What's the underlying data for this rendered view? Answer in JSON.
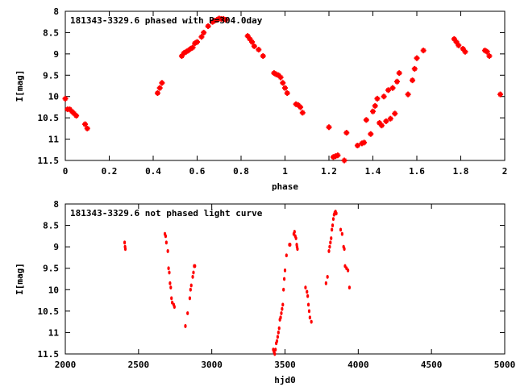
{
  "chart_data": [
    {
      "type": "scatter",
      "title": "181343-3329.6 phased with P=304.0day",
      "xlabel": "phase",
      "ylabel": "I[mag]",
      "xlim": [
        0,
        2
      ],
      "ylim": [
        11.5,
        8
      ],
      "y_reversed": true,
      "xticks": [
        "0",
        "0.2",
        "0.4",
        "0.6",
        "0.8",
        "1",
        "1.2",
        "1.4",
        "1.6",
        "1.8",
        "2"
      ],
      "xtick_values": [
        0,
        0.2,
        0.4,
        0.6,
        0.8,
        1,
        1.2,
        1.4,
        1.6,
        1.8,
        2
      ],
      "yticks": [
        "8",
        "8.5",
        "9",
        "9.5",
        "10",
        "10.5",
        "11",
        "11.5"
      ],
      "ytick_values": [
        8,
        8.5,
        9,
        9.5,
        10,
        10.5,
        11,
        11.5
      ],
      "marker_color": "#ff0000",
      "x": [
        0.0,
        0.01,
        0.02,
        0.03,
        0.04,
        0.05,
        0.09,
        0.1,
        0.42,
        0.43,
        0.44,
        0.53,
        0.54,
        0.55,
        0.56,
        0.57,
        0.58,
        0.59,
        0.6,
        0.62,
        0.63,
        0.65,
        0.67,
        0.68,
        0.69,
        0.7,
        0.71,
        0.72,
        0.73,
        0.83,
        0.84,
        0.85,
        0.86,
        0.88,
        0.9,
        0.95,
        0.96,
        0.97,
        0.98,
        0.99,
        1.0,
        1.01,
        1.05,
        1.06,
        1.07,
        1.08,
        1.2,
        1.22,
        1.23,
        1.24,
        1.27,
        1.28,
        1.33,
        1.35,
        1.36,
        1.37,
        1.39,
        1.4,
        1.41,
        1.42,
        1.43,
        1.44,
        1.45,
        1.46,
        1.47,
        1.48,
        1.49,
        1.5,
        1.51,
        1.52,
        1.56,
        1.58,
        1.59,
        1.6,
        1.63,
        1.77,
        1.78,
        1.79,
        1.81,
        1.82,
        1.91,
        1.92,
        1.93,
        1.98
      ],
      "y": [
        10.05,
        10.3,
        10.3,
        10.35,
        10.4,
        10.45,
        10.65,
        10.75,
        9.92,
        9.8,
        9.68,
        9.05,
        8.98,
        8.95,
        8.92,
        8.88,
        8.85,
        8.75,
        8.72,
        8.6,
        8.5,
        8.35,
        8.25,
        8.22,
        8.2,
        8.17,
        8.18,
        8.18,
        8.2,
        8.58,
        8.65,
        8.72,
        8.82,
        8.9,
        9.05,
        9.45,
        9.48,
        9.5,
        9.55,
        9.68,
        9.8,
        9.92,
        10.18,
        10.2,
        10.25,
        10.38,
        10.72,
        11.42,
        11.4,
        11.38,
        11.5,
        10.85,
        11.15,
        11.1,
        11.08,
        10.55,
        10.88,
        10.35,
        10.22,
        10.05,
        10.62,
        10.68,
        10.0,
        10.58,
        9.85,
        10.52,
        9.8,
        10.4,
        9.65,
        9.45,
        9.95,
        9.62,
        9.35,
        9.1,
        8.92,
        8.65,
        8.72,
        8.8,
        8.88,
        8.95,
        8.92,
        8.95,
        9.05,
        9.95
      ]
    },
    {
      "type": "scatter",
      "title": "181343-3329.6 not phased light curve",
      "xlabel": "hjd0",
      "ylabel": "I[mag]",
      "xlim": [
        2000,
        5000
      ],
      "ylim": [
        11.5,
        8
      ],
      "y_reversed": true,
      "xticks": [
        "2000",
        "2500",
        "3000",
        "3500",
        "4000",
        "4500",
        "5000"
      ],
      "xtick_values": [
        2000,
        2500,
        3000,
        3500,
        4000,
        4500,
        5000
      ],
      "yticks": [
        "8",
        "8.5",
        "9",
        "9.5",
        "10",
        "10.5",
        "11",
        "11.5"
      ],
      "ytick_values": [
        8,
        8.5,
        9,
        9.5,
        10,
        10.5,
        11,
        11.5
      ],
      "marker_color": "#ff0000",
      "x": [
        2405,
        2408,
        2410,
        2680,
        2685,
        2690,
        2700,
        2705,
        2710,
        2715,
        2720,
        2725,
        2730,
        2740,
        2745,
        2820,
        2835,
        2850,
        2855,
        2860,
        2870,
        2875,
        2880,
        2885,
        3420,
        3425,
        3430,
        3435,
        3440,
        3445,
        3450,
        3455,
        3460,
        3465,
        3470,
        3475,
        3480,
        3485,
        3490,
        3495,
        3500,
        3510,
        3530,
        3535,
        3560,
        3565,
        3570,
        3575,
        3580,
        3582,
        3585,
        3640,
        3650,
        3655,
        3660,
        3665,
        3670,
        3680,
        3780,
        3790,
        3800,
        3805,
        3810,
        3815,
        3820,
        3825,
        3830,
        3835,
        3840,
        3845,
        3850,
        3880,
        3890,
        3900,
        3905,
        3910,
        3920,
        3930,
        3940
      ],
      "y": [
        8.9,
        9.0,
        9.05,
        8.7,
        8.75,
        8.9,
        9.1,
        9.5,
        9.6,
        9.85,
        9.95,
        10.2,
        10.3,
        10.35,
        10.4,
        10.85,
        10.55,
        10.2,
        10.0,
        9.9,
        9.7,
        9.6,
        9.45,
        9.45,
        11.4,
        11.45,
        11.5,
        11.4,
        11.25,
        11.2,
        11.1,
        11.0,
        10.9,
        10.7,
        10.65,
        10.55,
        10.45,
        10.35,
        10.0,
        9.75,
        9.55,
        9.2,
        8.95,
        8.95,
        8.7,
        8.65,
        8.75,
        8.8,
        8.95,
        9.0,
        9.05,
        9.95,
        10.05,
        10.15,
        10.35,
        10.5,
        10.65,
        10.75,
        9.85,
        9.7,
        9.1,
        9.0,
        8.9,
        8.8,
        8.6,
        8.5,
        8.35,
        8.25,
        8.2,
        8.18,
        8.22,
        8.6,
        8.7,
        9.0,
        9.05,
        9.45,
        9.5,
        9.55,
        9.95
      ]
    }
  ]
}
